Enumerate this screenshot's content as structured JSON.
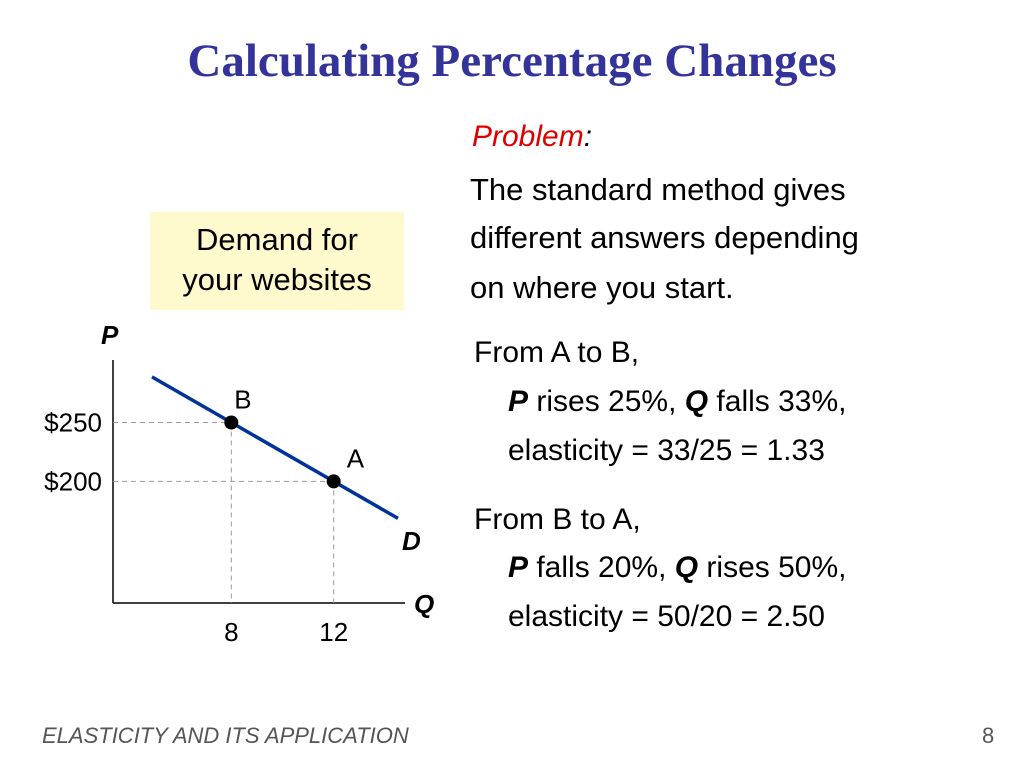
{
  "title": "Calculating Percentage Changes",
  "problem": {
    "heading": "Problem",
    "colon": ":",
    "lines": [
      "The standard method gives",
      "different answers depending",
      "on where you start."
    ]
  },
  "caption": {
    "line1": "Demand for",
    "line2": "your websites"
  },
  "cases": {
    "a_to_b": {
      "heading": "From A to B,",
      "p": "P",
      "p_text": " rises 25%, ",
      "q": "Q",
      "q_text": " falls 33%,",
      "elasticity": "elasticity = 33/25 = 1.33"
    },
    "b_to_a": {
      "heading": "From B to A,",
      "p": "P",
      "p_text": " falls 20%, ",
      "q": "Q",
      "q_text": " rises 50%,",
      "elasticity": "elasticity = 50/20 = 2.50"
    }
  },
  "chart_data": {
    "type": "line",
    "ylabel": "P",
    "xlabel": "Q",
    "curve_label": "D",
    "y_ticks": [
      {
        "value": 250,
        "label": "$250"
      },
      {
        "value": 200,
        "label": "$200"
      }
    ],
    "x_ticks": [
      {
        "value": 8,
        "label": "8"
      },
      {
        "value": 12,
        "label": "12"
      }
    ],
    "points": [
      {
        "name": "B",
        "x": 8,
        "y": 250
      },
      {
        "name": "A",
        "x": 12,
        "y": 200
      }
    ],
    "line_color": "#003399"
  },
  "footer": "ELASTICITY AND ITS APPLICATION",
  "page_number": "8"
}
